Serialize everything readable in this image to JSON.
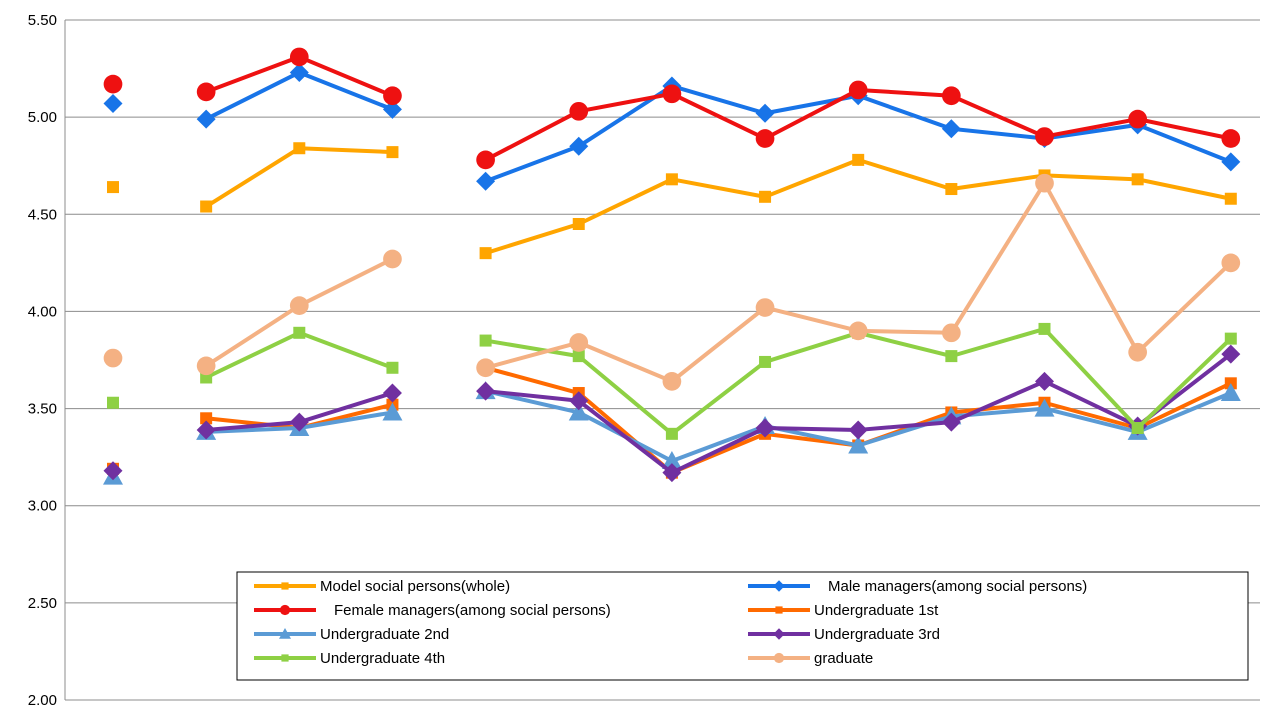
{
  "chart_data": {
    "type": "line",
    "title": "",
    "xlabel": "",
    "ylabel": "",
    "ylim": [
      2.0,
      5.5
    ],
    "yticks": [
      "2.00",
      "2.50",
      "3.00",
      "3.50",
      "4.00",
      "4.50",
      "5.00",
      "5.50"
    ],
    "grid": true,
    "legend_position": "bottom-center",
    "x": [
      1,
      2,
      3,
      4,
      5,
      6,
      7,
      8,
      9,
      10,
      11,
      12,
      13
    ],
    "series": [
      {
        "name": "Model social persons(whole)",
        "color": "#FFA500",
        "marker": "square",
        "values": [
          4.64,
          4.54,
          4.84,
          4.82,
          4.3,
          4.45,
          4.68,
          4.59,
          4.78,
          4.63,
          4.7,
          4.68,
          4.58
        ]
      },
      {
        "name": "Male managers(among social persons)",
        "color": "#1874E8",
        "marker": "diamond",
        "values": [
          5.07,
          4.99,
          5.23,
          5.04,
          4.67,
          4.85,
          5.16,
          5.02,
          5.11,
          4.94,
          4.89,
          4.96,
          4.77
        ]
      },
      {
        "name": "Female managers(among social persons)",
        "color": "#EE1111",
        "marker": "circle",
        "values": [
          5.17,
          5.13,
          5.31,
          5.11,
          4.78,
          5.03,
          5.12,
          4.89,
          5.14,
          5.11,
          4.9,
          4.99,
          4.89
        ]
      },
      {
        "name": "Undergraduate 1st",
        "color": "#FF6A00",
        "marker": "square",
        "values": [
          3.19,
          3.45,
          3.4,
          3.52,
          3.71,
          3.58,
          3.17,
          3.37,
          3.31,
          3.48,
          3.53,
          3.4,
          3.63
        ]
      },
      {
        "name": "Undergraduate 2nd",
        "color": "#5B9BD5",
        "marker": "triangle",
        "values": [
          3.15,
          3.38,
          3.4,
          3.48,
          3.59,
          3.48,
          3.23,
          3.41,
          3.31,
          3.46,
          3.5,
          3.38,
          3.58
        ]
      },
      {
        "name": "Undergraduate 3rd",
        "color": "#7030A0",
        "marker": "diamond",
        "values": [
          3.18,
          3.39,
          3.43,
          3.58,
          3.59,
          3.54,
          3.17,
          3.4,
          3.39,
          3.43,
          3.64,
          3.41,
          3.78
        ]
      },
      {
        "name": "Undergraduate 4th",
        "color": "#8ED044",
        "marker": "square",
        "values": [
          3.53,
          3.66,
          3.89,
          3.71,
          3.85,
          3.77,
          3.37,
          3.74,
          3.89,
          3.77,
          3.91,
          3.4,
          3.86
        ]
      },
      {
        "name": "graduate",
        "color": "#F4B183",
        "marker": "circle",
        "values": [
          3.76,
          3.72,
          4.03,
          4.27,
          3.71,
          3.84,
          3.64,
          4.02,
          3.9,
          3.89,
          4.66,
          3.79,
          4.25
        ]
      }
    ],
    "gaps_after": [
      1,
      4
    ]
  }
}
